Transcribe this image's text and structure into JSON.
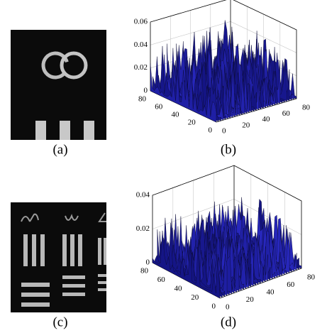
{
  "panels": [
    {
      "label": "(a)"
    },
    {
      "label": "(b)",
      "z_ticks": [
        "0.06",
        "0.04",
        "0.02",
        "0"
      ],
      "x_ticks": [
        "80",
        "60",
        "40",
        "20",
        "0"
      ],
      "y_ticks": [
        "0",
        "20",
        "40",
        "60",
        "80"
      ]
    },
    {
      "label": "(c)"
    },
    {
      "label": "(d)",
      "z_ticks": [
        "0.04",
        "0.02",
        "0"
      ],
      "x_ticks": [
        "80",
        "60",
        "40",
        "20",
        "0"
      ],
      "y_ticks": [
        "0",
        "20",
        "40",
        "60",
        "80"
      ]
    }
  ]
}
